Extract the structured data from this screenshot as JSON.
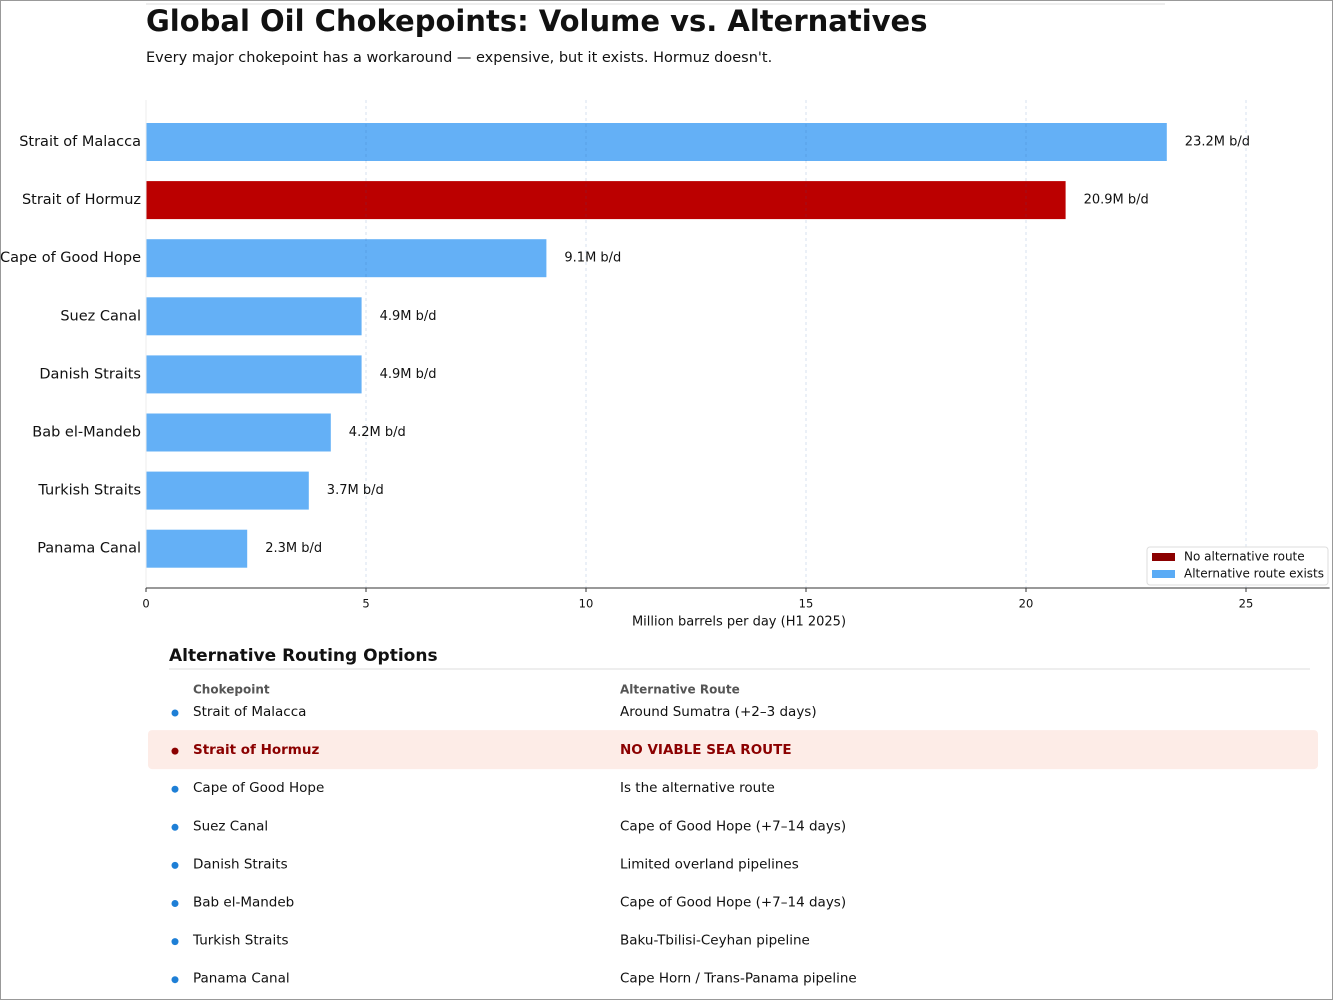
{
  "chart_data": {
    "type": "barh",
    "title": "Global Oil Chokepoints: Volume vs. Alternatives",
    "subtitle": "Every major chokepoint has a workaround — expensive, but it exists. Hormuz doesn't.",
    "categories": [
      "Strait of Malacca",
      "Strait of Hormuz",
      "Cape of Good Hope",
      "Suez Canal",
      "Danish Straits",
      "Bab el-Mandeb",
      "Turkish Straits",
      "Panama Canal"
    ],
    "values": [
      23.2,
      20.9,
      9.1,
      4.9,
      4.9,
      4.2,
      3.7,
      2.3
    ],
    "value_labels": [
      "23.2M b/d",
      "20.9M b/d",
      "9.1M b/d",
      "4.9M b/d",
      "4.9M b/d",
      "4.2M b/d",
      "3.7M b/d",
      "2.3M b/d"
    ],
    "colors": [
      "#64b0f6",
      "#bb0000",
      "#64b0f6",
      "#64b0f6",
      "#64b0f6",
      "#64b0f6",
      "#64b0f6",
      "#64b0f6"
    ],
    "xlabel": "Million barrels per day (H1 2025)",
    "xlim": [
      0,
      26.9
    ],
    "xticks": [
      0,
      5,
      10,
      15,
      20,
      25
    ],
    "grid": true,
    "legend": {
      "corner": "lower right",
      "entries": [
        {
          "label": "No alternative route",
          "color": "#8b0000"
        },
        {
          "label": "Alternative route exists",
          "color": "#5aabf5"
        }
      ]
    }
  },
  "table": {
    "title": "Alternative Routing Options",
    "headers": [
      "Chokepoint",
      "Alternative Route"
    ],
    "highlight_row": 1,
    "rows": [
      [
        "Strait of Malacca",
        "Around Sumatra (+2–3 days)"
      ],
      [
        "Strait of Hormuz",
        "NO VIABLE SEA ROUTE"
      ],
      [
        "Cape of Good Hope",
        "Is the alternative route"
      ],
      [
        "Suez Canal",
        "Cape of Good Hope (+7–14 days)"
      ],
      [
        "Danish Straits",
        "Limited overland pipelines"
      ],
      [
        "Bab el-Mandeb",
        "Cape of Good Hope (+7–14 days)"
      ],
      [
        "Turkish Straits",
        "Baku-Tbilisi-Ceyhan pipeline"
      ],
      [
        "Panama Canal",
        "Cape Horn / Trans-Panama pipeline"
      ]
    ]
  }
}
